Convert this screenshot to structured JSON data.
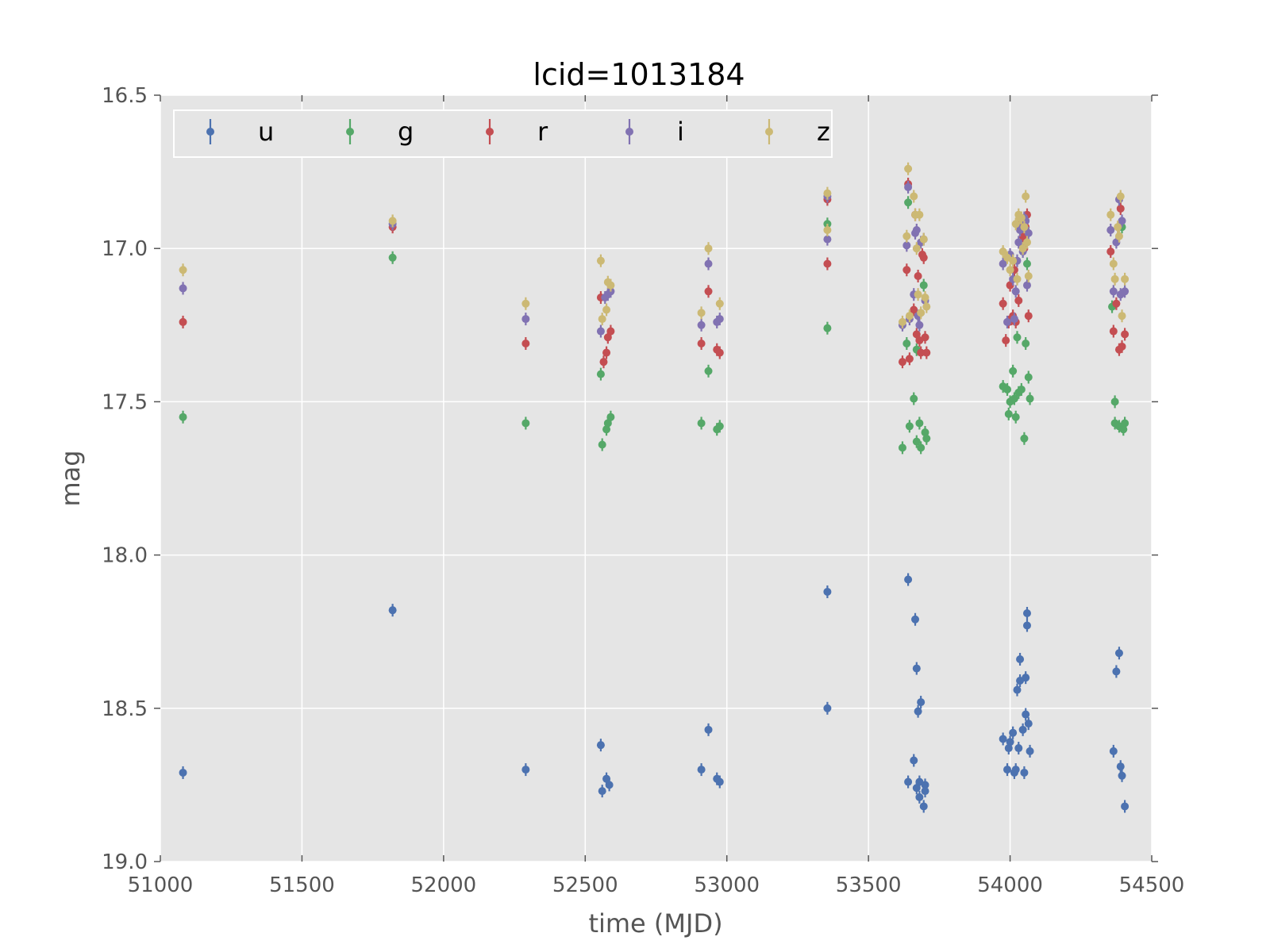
{
  "chart_data": {
    "type": "scatter",
    "title": "lcid=1013184",
    "xlabel": "time (MJD)",
    "ylabel": "mag",
    "xlim": [
      51000,
      54500
    ],
    "ylim": [
      19.0,
      16.5
    ],
    "y_inverted": true,
    "x_ticks": [
      "51000",
      "51500",
      "52000",
      "52500",
      "53000",
      "53500",
      "54000",
      "54500"
    ],
    "y_ticks": [
      "16.5",
      "17.0",
      "17.5",
      "18.0",
      "18.5",
      "19.0"
    ],
    "grid": true,
    "legend_placement": "top-left",
    "legend_columns": 5,
    "error_bars": true,
    "series": [
      {
        "name": "u",
        "color": "#4c72b0",
        "points": [
          [
            51080,
            18.71
          ],
          [
            51820,
            18.18
          ],
          [
            52290,
            18.7
          ],
          [
            52555,
            18.62
          ],
          [
            52560,
            18.77
          ],
          [
            52575,
            18.73
          ],
          [
            52585,
            18.75
          ],
          [
            52910,
            18.7
          ],
          [
            52935,
            18.57
          ],
          [
            52965,
            18.73
          ],
          [
            52975,
            18.74
          ],
          [
            53355,
            18.12
          ],
          [
            53355,
            18.5
          ],
          [
            53640,
            18.08
          ],
          [
            53640,
            18.74
          ],
          [
            53660,
            18.67
          ],
          [
            53665,
            18.21
          ],
          [
            53670,
            18.37
          ],
          [
            53670,
            18.76
          ],
          [
            53675,
            18.51
          ],
          [
            53680,
            18.74
          ],
          [
            53680,
            18.79
          ],
          [
            53685,
            18.48
          ],
          [
            53695,
            18.82
          ],
          [
            53700,
            18.75
          ],
          [
            53700,
            18.77
          ],
          [
            53975,
            18.6
          ],
          [
            53990,
            18.7
          ],
          [
            53995,
            18.63
          ],
          [
            54000,
            18.61
          ],
          [
            54010,
            18.58
          ],
          [
            54015,
            18.71
          ],
          [
            54020,
            18.7
          ],
          [
            54025,
            18.44
          ],
          [
            54030,
            18.63
          ],
          [
            54035,
            18.34
          ],
          [
            54035,
            18.41
          ],
          [
            54045,
            18.57
          ],
          [
            54050,
            18.71
          ],
          [
            54055,
            18.4
          ],
          [
            54055,
            18.52
          ],
          [
            54060,
            18.19
          ],
          [
            54060,
            18.23
          ],
          [
            54065,
            18.55
          ],
          [
            54070,
            18.64
          ],
          [
            54365,
            18.64
          ],
          [
            54375,
            18.38
          ],
          [
            54385,
            18.32
          ],
          [
            54390,
            18.69
          ],
          [
            54395,
            18.72
          ],
          [
            54405,
            18.82
          ]
        ]
      },
      {
        "name": "g",
        "color": "#55a868",
        "points": [
          [
            51080,
            17.55
          ],
          [
            51820,
            17.03
          ],
          [
            52290,
            17.57
          ],
          [
            52555,
            17.41
          ],
          [
            52560,
            17.64
          ],
          [
            52575,
            17.59
          ],
          [
            52580,
            17.57
          ],
          [
            52590,
            17.55
          ],
          [
            52910,
            17.57
          ],
          [
            52935,
            17.4
          ],
          [
            52965,
            17.59
          ],
          [
            52975,
            17.58
          ],
          [
            53355,
            16.92
          ],
          [
            53355,
            17.26
          ],
          [
            53620,
            17.65
          ],
          [
            53635,
            17.31
          ],
          [
            53640,
            16.85
          ],
          [
            53645,
            17.58
          ],
          [
            53660,
            17.49
          ],
          [
            53670,
            17.63
          ],
          [
            53670,
            17.33
          ],
          [
            53680,
            17.57
          ],
          [
            53685,
            17.65
          ],
          [
            53695,
            17.12
          ],
          [
            53700,
            17.6
          ],
          [
            53705,
            17.62
          ],
          [
            53975,
            17.45
          ],
          [
            53990,
            17.46
          ],
          [
            53995,
            17.54
          ],
          [
            54000,
            17.5
          ],
          [
            54010,
            17.4
          ],
          [
            54015,
            17.49
          ],
          [
            54020,
            17.55
          ],
          [
            54025,
            17.29
          ],
          [
            54030,
            17.47
          ],
          [
            54040,
            17.46
          ],
          [
            54050,
            17.62
          ],
          [
            54055,
            17.31
          ],
          [
            54060,
            17.05
          ],
          [
            54065,
            17.42
          ],
          [
            54070,
            17.49
          ],
          [
            54360,
            17.19
          ],
          [
            54370,
            17.5
          ],
          [
            54370,
            17.57
          ],
          [
            54385,
            17.58
          ],
          [
            54395,
            16.93
          ],
          [
            54400,
            17.59
          ],
          [
            54405,
            17.57
          ]
        ]
      },
      {
        "name": "r",
        "color": "#c44e52",
        "points": [
          [
            51080,
            17.24
          ],
          [
            51820,
            16.93
          ],
          [
            52290,
            17.31
          ],
          [
            52555,
            17.16
          ],
          [
            52565,
            17.37
          ],
          [
            52575,
            17.34
          ],
          [
            52580,
            17.29
          ],
          [
            52590,
            17.27
          ],
          [
            52910,
            17.31
          ],
          [
            52935,
            17.14
          ],
          [
            52965,
            17.33
          ],
          [
            52975,
            17.34
          ],
          [
            53355,
            16.84
          ],
          [
            53355,
            17.05
          ],
          [
            53620,
            17.37
          ],
          [
            53635,
            17.07
          ],
          [
            53640,
            16.79
          ],
          [
            53645,
            17.36
          ],
          [
            53660,
            17.2
          ],
          [
            53665,
            16.89
          ],
          [
            53670,
            17.28
          ],
          [
            53675,
            17.09
          ],
          [
            53680,
            17.3
          ],
          [
            53685,
            17.34
          ],
          [
            53690,
            17.02
          ],
          [
            53695,
            17.03
          ],
          [
            53700,
            17.29
          ],
          [
            53705,
            17.34
          ],
          [
            53975,
            17.18
          ],
          [
            53985,
            17.3
          ],
          [
            53995,
            17.24
          ],
          [
            54000,
            17.12
          ],
          [
            54005,
            17.23
          ],
          [
            54010,
            17.22
          ],
          [
            54015,
            17.07
          ],
          [
            54020,
            17.24
          ],
          [
            54030,
            17.17
          ],
          [
            54035,
            16.92
          ],
          [
            54045,
            16.96
          ],
          [
            54050,
            17.0
          ],
          [
            54055,
            16.93
          ],
          [
            54060,
            16.89
          ],
          [
            54065,
            17.22
          ],
          [
            54355,
            17.01
          ],
          [
            54365,
            17.27
          ],
          [
            54375,
            17.18
          ],
          [
            54385,
            17.33
          ],
          [
            54390,
            16.87
          ],
          [
            54395,
            17.32
          ],
          [
            54405,
            17.28
          ]
        ]
      },
      {
        "name": "i",
        "color": "#8172b2",
        "points": [
          [
            51080,
            17.13
          ],
          [
            51820,
            16.92
          ],
          [
            52290,
            17.23
          ],
          [
            52555,
            17.27
          ],
          [
            52570,
            17.16
          ],
          [
            52580,
            17.15
          ],
          [
            52590,
            17.14
          ],
          [
            52910,
            17.25
          ],
          [
            52935,
            17.05
          ],
          [
            52965,
            17.24
          ],
          [
            52975,
            17.23
          ],
          [
            53355,
            16.83
          ],
          [
            53355,
            16.97
          ],
          [
            53620,
            17.25
          ],
          [
            53635,
            16.99
          ],
          [
            53640,
            16.8
          ],
          [
            53645,
            17.23
          ],
          [
            53660,
            17.15
          ],
          [
            53665,
            16.95
          ],
          [
            53670,
            16.94
          ],
          [
            53675,
            17.22
          ],
          [
            53680,
            17.25
          ],
          [
            53685,
            16.98
          ],
          [
            53695,
            16.97
          ],
          [
            53700,
            17.17
          ],
          [
            53975,
            17.05
          ],
          [
            53990,
            17.24
          ],
          [
            54000,
            17.02
          ],
          [
            54010,
            17.1
          ],
          [
            54015,
            17.23
          ],
          [
            54020,
            17.14
          ],
          [
            54025,
            17.04
          ],
          [
            54030,
            16.98
          ],
          [
            54035,
            16.94
          ],
          [
            54045,
            17.01
          ],
          [
            54050,
            16.9
          ],
          [
            54055,
            16.91
          ],
          [
            54060,
            17.12
          ],
          [
            54065,
            16.95
          ],
          [
            54355,
            16.94
          ],
          [
            54365,
            17.14
          ],
          [
            54375,
            16.98
          ],
          [
            54385,
            16.84
          ],
          [
            54390,
            17.15
          ],
          [
            54395,
            16.91
          ],
          [
            54405,
            17.14
          ]
        ]
      },
      {
        "name": "z",
        "color": "#ccb974",
        "points": [
          [
            51080,
            17.07
          ],
          [
            51820,
            16.91
          ],
          [
            52290,
            17.18
          ],
          [
            52555,
            17.04
          ],
          [
            52560,
            17.23
          ],
          [
            52575,
            17.2
          ],
          [
            52580,
            17.11
          ],
          [
            52590,
            17.12
          ],
          [
            52910,
            17.21
          ],
          [
            52935,
            17.0
          ],
          [
            52975,
            17.18
          ],
          [
            53355,
            16.82
          ],
          [
            53355,
            16.94
          ],
          [
            53620,
            17.24
          ],
          [
            53635,
            16.96
          ],
          [
            53640,
            16.74
          ],
          [
            53645,
            17.22
          ],
          [
            53660,
            16.83
          ],
          [
            53665,
            16.89
          ],
          [
            53670,
            17.0
          ],
          [
            53675,
            17.15
          ],
          [
            53680,
            16.89
          ],
          [
            53685,
            17.21
          ],
          [
            53695,
            16.97
          ],
          [
            53700,
            17.16
          ],
          [
            53705,
            17.19
          ],
          [
            53975,
            17.01
          ],
          [
            53990,
            17.03
          ],
          [
            54000,
            17.07
          ],
          [
            54010,
            17.04
          ],
          [
            54020,
            16.92
          ],
          [
            54025,
            17.1
          ],
          [
            54030,
            16.89
          ],
          [
            54035,
            16.9
          ],
          [
            54040,
            16.9
          ],
          [
            54045,
            17.0
          ],
          [
            54050,
            16.93
          ],
          [
            54055,
            16.83
          ],
          [
            54060,
            16.98
          ],
          [
            54065,
            17.09
          ],
          [
            54355,
            16.89
          ],
          [
            54365,
            17.05
          ],
          [
            54370,
            17.1
          ],
          [
            54380,
            16.93
          ],
          [
            54385,
            16.96
          ],
          [
            54390,
            16.83
          ],
          [
            54395,
            17.22
          ],
          [
            54405,
            17.1
          ]
        ]
      }
    ]
  }
}
